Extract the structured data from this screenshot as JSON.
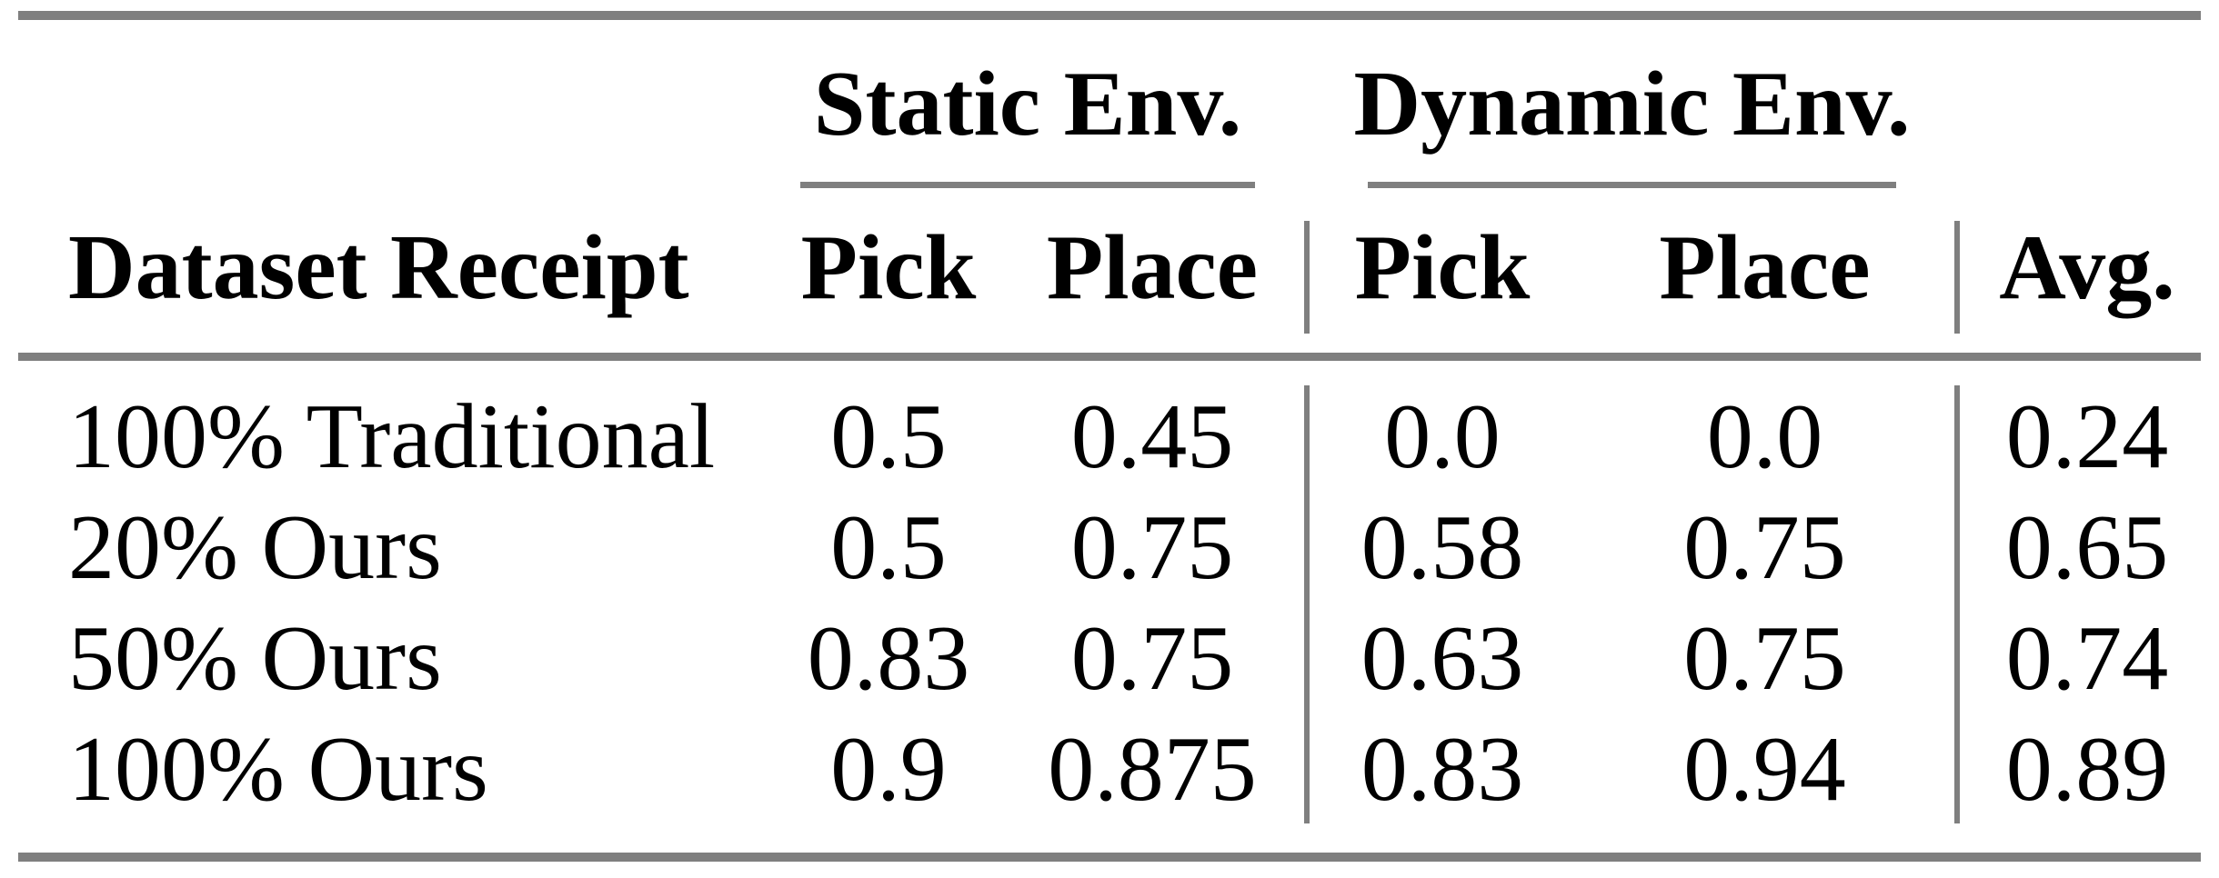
{
  "table": {
    "group_headers": {
      "static": "Static Env.",
      "dynamic": "Dynamic Env."
    },
    "column_headers": {
      "dataset": "Dataset Receipt",
      "static_pick": "Pick",
      "static_place": "Place",
      "dynamic_pick": "Pick",
      "dynamic_place": "Place",
      "avg": "Avg."
    },
    "rows": [
      {
        "label": "100% Traditional",
        "static_pick": "0.5",
        "static_place": "0.45",
        "dynamic_pick": "0.0",
        "dynamic_place": "0.0",
        "avg": "0.24"
      },
      {
        "label": "20% Ours",
        "static_pick": "0.5",
        "static_place": "0.75",
        "dynamic_pick": "0.58",
        "dynamic_place": "0.75",
        "avg": "0.65"
      },
      {
        "label": "50% Ours",
        "static_pick": "0.83",
        "static_place": "0.75",
        "dynamic_pick": "0.63",
        "dynamic_place": "0.75",
        "avg": "0.74"
      },
      {
        "label": "100% Ours",
        "static_pick": "0.9",
        "static_place": "0.875",
        "dynamic_pick": "0.83",
        "dynamic_place": "0.94",
        "avg": "0.89"
      }
    ],
    "colors": {
      "rule_gray": "#7f7f7f",
      "text": "#000000",
      "background": "#ffffff"
    }
  }
}
